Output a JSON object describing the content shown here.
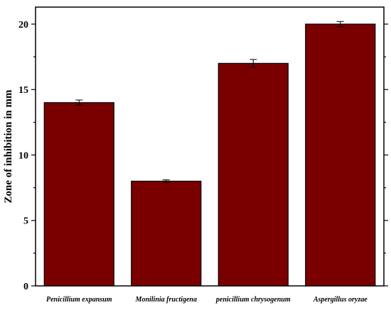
{
  "chart_data": {
    "type": "bar",
    "title": "",
    "xlabel": "",
    "ylabel": "Zone of inhibition in mm",
    "categories": [
      "Penicillium expansum",
      "Monilinia fructigena",
      "penicillium chrysogenum",
      "Aspergillus oryzae"
    ],
    "values": [
      14,
      8,
      17,
      20
    ],
    "errors": [
      0.2,
      0.1,
      0.3,
      0.2
    ],
    "ylim": [
      0,
      21.3
    ],
    "yticks": [
      0,
      5,
      10,
      15,
      20
    ],
    "grid": false,
    "legend": "none",
    "colors": {
      "bar_fill": "#7a0000",
      "bar_stroke": "#000000",
      "axis": "#000000"
    }
  }
}
